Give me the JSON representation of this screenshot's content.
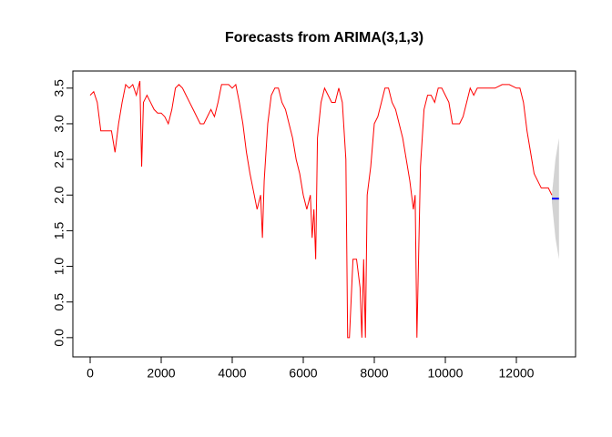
{
  "chart_data": {
    "type": "line",
    "title": "Forecasts from ARIMA(3,1,3)",
    "xlim": [
      -487,
      13667
    ],
    "ylim": [
      -0.27,
      3.74
    ],
    "xticks": [
      0,
      2000,
      4000,
      6000,
      8000,
      10000,
      12000
    ],
    "yticks": [
      {
        "value": 0,
        "label": "0.0"
      },
      {
        "value": 0.5,
        "label": "0.5"
      },
      {
        "value": 1,
        "label": "1.0"
      },
      {
        "value": 1.5,
        "label": "1.5"
      },
      {
        "value": 2,
        "label": "2.0"
      },
      {
        "value": 2.5,
        "label": "2.5"
      },
      {
        "value": 3,
        "label": "3.0"
      },
      {
        "value": 3.5,
        "label": "3.5"
      }
    ],
    "series": [
      {
        "color": "#ff0000",
        "x": [
          0,
          100,
          200,
          300,
          400,
          500,
          600,
          700,
          800,
          900,
          1000,
          1100,
          1200,
          1300,
          1400,
          1450,
          1500,
          1600,
          1700,
          1800,
          1900,
          2000,
          2100,
          2200,
          2300,
          2400,
          2500,
          2600,
          2700,
          2800,
          2900,
          3000,
          3100,
          3200,
          3300,
          3400,
          3500,
          3600,
          3700,
          3800,
          3900,
          4000,
          4100,
          4200,
          4300,
          4400,
          4500,
          4600,
          4700,
          4800,
          4850,
          4900,
          5000,
          5100,
          5200,
          5300,
          5400,
          5500,
          5600,
          5700,
          5800,
          5900,
          6000,
          6100,
          6200,
          6250,
          6300,
          6350,
          6400,
          6500,
          6600,
          6700,
          6800,
          6900,
          7000,
          7100,
          7200,
          7250,
          7300,
          7400,
          7500,
          7600,
          7650,
          7700,
          7750,
          7800,
          7900,
          8000,
          8100,
          8200,
          8300,
          8400,
          8500,
          8600,
          8700,
          8800,
          8900,
          9000,
          9100,
          9150,
          9200,
          9300,
          9400,
          9500,
          9600,
          9700,
          9800,
          9900,
          10000,
          10100,
          10200,
          10300,
          10400,
          10500,
          10600,
          10700,
          10800,
          10900,
          11000,
          11200,
          11400,
          11600,
          11800,
          12000,
          12100,
          12200,
          12300,
          12400,
          12500,
          12600,
          12700,
          12800,
          12900,
          13000
        ],
        "values": [
          3.4,
          3.45,
          3.3,
          2.9,
          2.9,
          2.9,
          2.9,
          2.6,
          3.0,
          3.3,
          3.55,
          3.5,
          3.55,
          3.4,
          3.6,
          2.4,
          3.3,
          3.4,
          3.3,
          3.2,
          3.15,
          3.15,
          3.1,
          3.0,
          3.2,
          3.5,
          3.55,
          3.5,
          3.4,
          3.3,
          3.2,
          3.1,
          3.0,
          3.0,
          3.1,
          3.2,
          3.1,
          3.3,
          3.55,
          3.55,
          3.55,
          3.5,
          3.55,
          3.3,
          3.0,
          2.6,
          2.3,
          2.05,
          1.8,
          2.0,
          1.4,
          2.2,
          3.0,
          3.4,
          3.5,
          3.5,
          3.3,
          3.2,
          3.0,
          2.8,
          2.5,
          2.3,
          2.0,
          1.8,
          2.0,
          1.4,
          1.8,
          1.1,
          2.8,
          3.3,
          3.5,
          3.4,
          3.3,
          3.3,
          3.5,
          3.3,
          2.5,
          0,
          0,
          1.1,
          1.1,
          0.7,
          0,
          1.1,
          0,
          2.0,
          2.4,
          3.0,
          3.1,
          3.3,
          3.5,
          3.5,
          3.3,
          3.2,
          3.0,
          2.8,
          2.5,
          2.2,
          1.8,
          2.0,
          0,
          2.4,
          3.2,
          3.4,
          3.4,
          3.3,
          3.5,
          3.5,
          3.4,
          3.3,
          3.0,
          3.0,
          3.0,
          3.1,
          3.3,
          3.5,
          3.4,
          3.5,
          3.5,
          3.5,
          3.5,
          3.55,
          3.55,
          3.5,
          3.5,
          3.3,
          2.9,
          2.6,
          2.3,
          2.2,
          2.1,
          2.1,
          2.1,
          2.0
        ]
      },
      {
        "color": "#0000ff",
        "x": [
          13000,
          13100,
          13200
        ],
        "values": [
          1.95,
          1.95,
          1.95
        ]
      }
    ],
    "interval": {
      "color": "#d3d3d3",
      "x": [
        13000,
        13100,
        13200
      ],
      "lower": [
        1.9,
        1.4,
        1.1
      ],
      "upper": [
        2.0,
        2.5,
        2.8
      ]
    }
  }
}
